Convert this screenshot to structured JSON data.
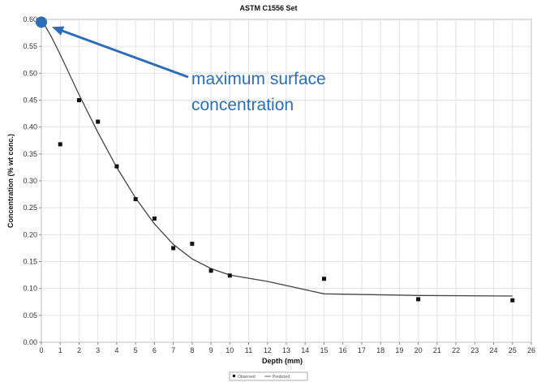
{
  "chart_data": {
    "type": "scatter",
    "title": "ASTM C1556 Set",
    "xlabel": "Depth (mm)",
    "ylabel": "Concentration (% wt conc.)",
    "xlim": [
      0,
      26
    ],
    "ylim": [
      0,
      0.6
    ],
    "x_ticks": [
      "0",
      "1",
      "2",
      "3",
      "4",
      "5",
      "6",
      "7",
      "8",
      "9",
      "10",
      "11",
      "12",
      "13",
      "14",
      "15",
      "16",
      "17",
      "18",
      "19",
      "20",
      "21",
      "22",
      "23",
      "24",
      "25",
      "26"
    ],
    "y_ticks": [
      "0.00",
      "0.05",
      "0.10",
      "0.15",
      "0.20",
      "0.25",
      "0.30",
      "0.35",
      "0.40",
      "0.45",
      "0.50",
      "0.55",
      "0.60"
    ],
    "grid": true,
    "legend_position": "bottom-center",
    "series": [
      {
        "name": "Observed",
        "type": "scatter",
        "color": "#111111",
        "points": [
          {
            "x": 1,
            "y": 0.368
          },
          {
            "x": 2,
            "y": 0.45
          },
          {
            "x": 3,
            "y": 0.41
          },
          {
            "x": 4,
            "y": 0.327
          },
          {
            "x": 5,
            "y": 0.266
          },
          {
            "x": 6,
            "y": 0.23
          },
          {
            "x": 7,
            "y": 0.175
          },
          {
            "x": 8,
            "y": 0.183
          },
          {
            "x": 9,
            "y": 0.133
          },
          {
            "x": 10,
            "y": 0.124
          },
          {
            "x": 15,
            "y": 0.118
          },
          {
            "x": 20,
            "y": 0.08
          },
          {
            "x": 25,
            "y": 0.078
          }
        ]
      },
      {
        "name": "Predicted",
        "type": "line",
        "color": "#444444",
        "points": [
          {
            "x": 0,
            "y": 0.6
          },
          {
            "x": 0.5,
            "y": 0.57
          },
          {
            "x": 1,
            "y": 0.535
          },
          {
            "x": 2,
            "y": 0.46
          },
          {
            "x": 3,
            "y": 0.39
          },
          {
            "x": 4,
            "y": 0.325
          },
          {
            "x": 5,
            "y": 0.268
          },
          {
            "x": 6,
            "y": 0.22
          },
          {
            "x": 7,
            "y": 0.182
          },
          {
            "x": 8,
            "y": 0.155
          },
          {
            "x": 9,
            "y": 0.137
          },
          {
            "x": 10,
            "y": 0.125
          },
          {
            "x": 12,
            "y": 0.113
          },
          {
            "x": 15,
            "y": 0.09
          },
          {
            "x": 20,
            "y": 0.087
          },
          {
            "x": 25,
            "y": 0.086
          }
        ]
      }
    ],
    "annotation": {
      "text_line1": "maximum surface",
      "text_line2": "concentration",
      "color": "#2e6db4",
      "marker_x": 0,
      "marker_y": 0.595
    },
    "legend": {
      "observed_label": "Observed",
      "predicted_label": "Predicted"
    }
  }
}
